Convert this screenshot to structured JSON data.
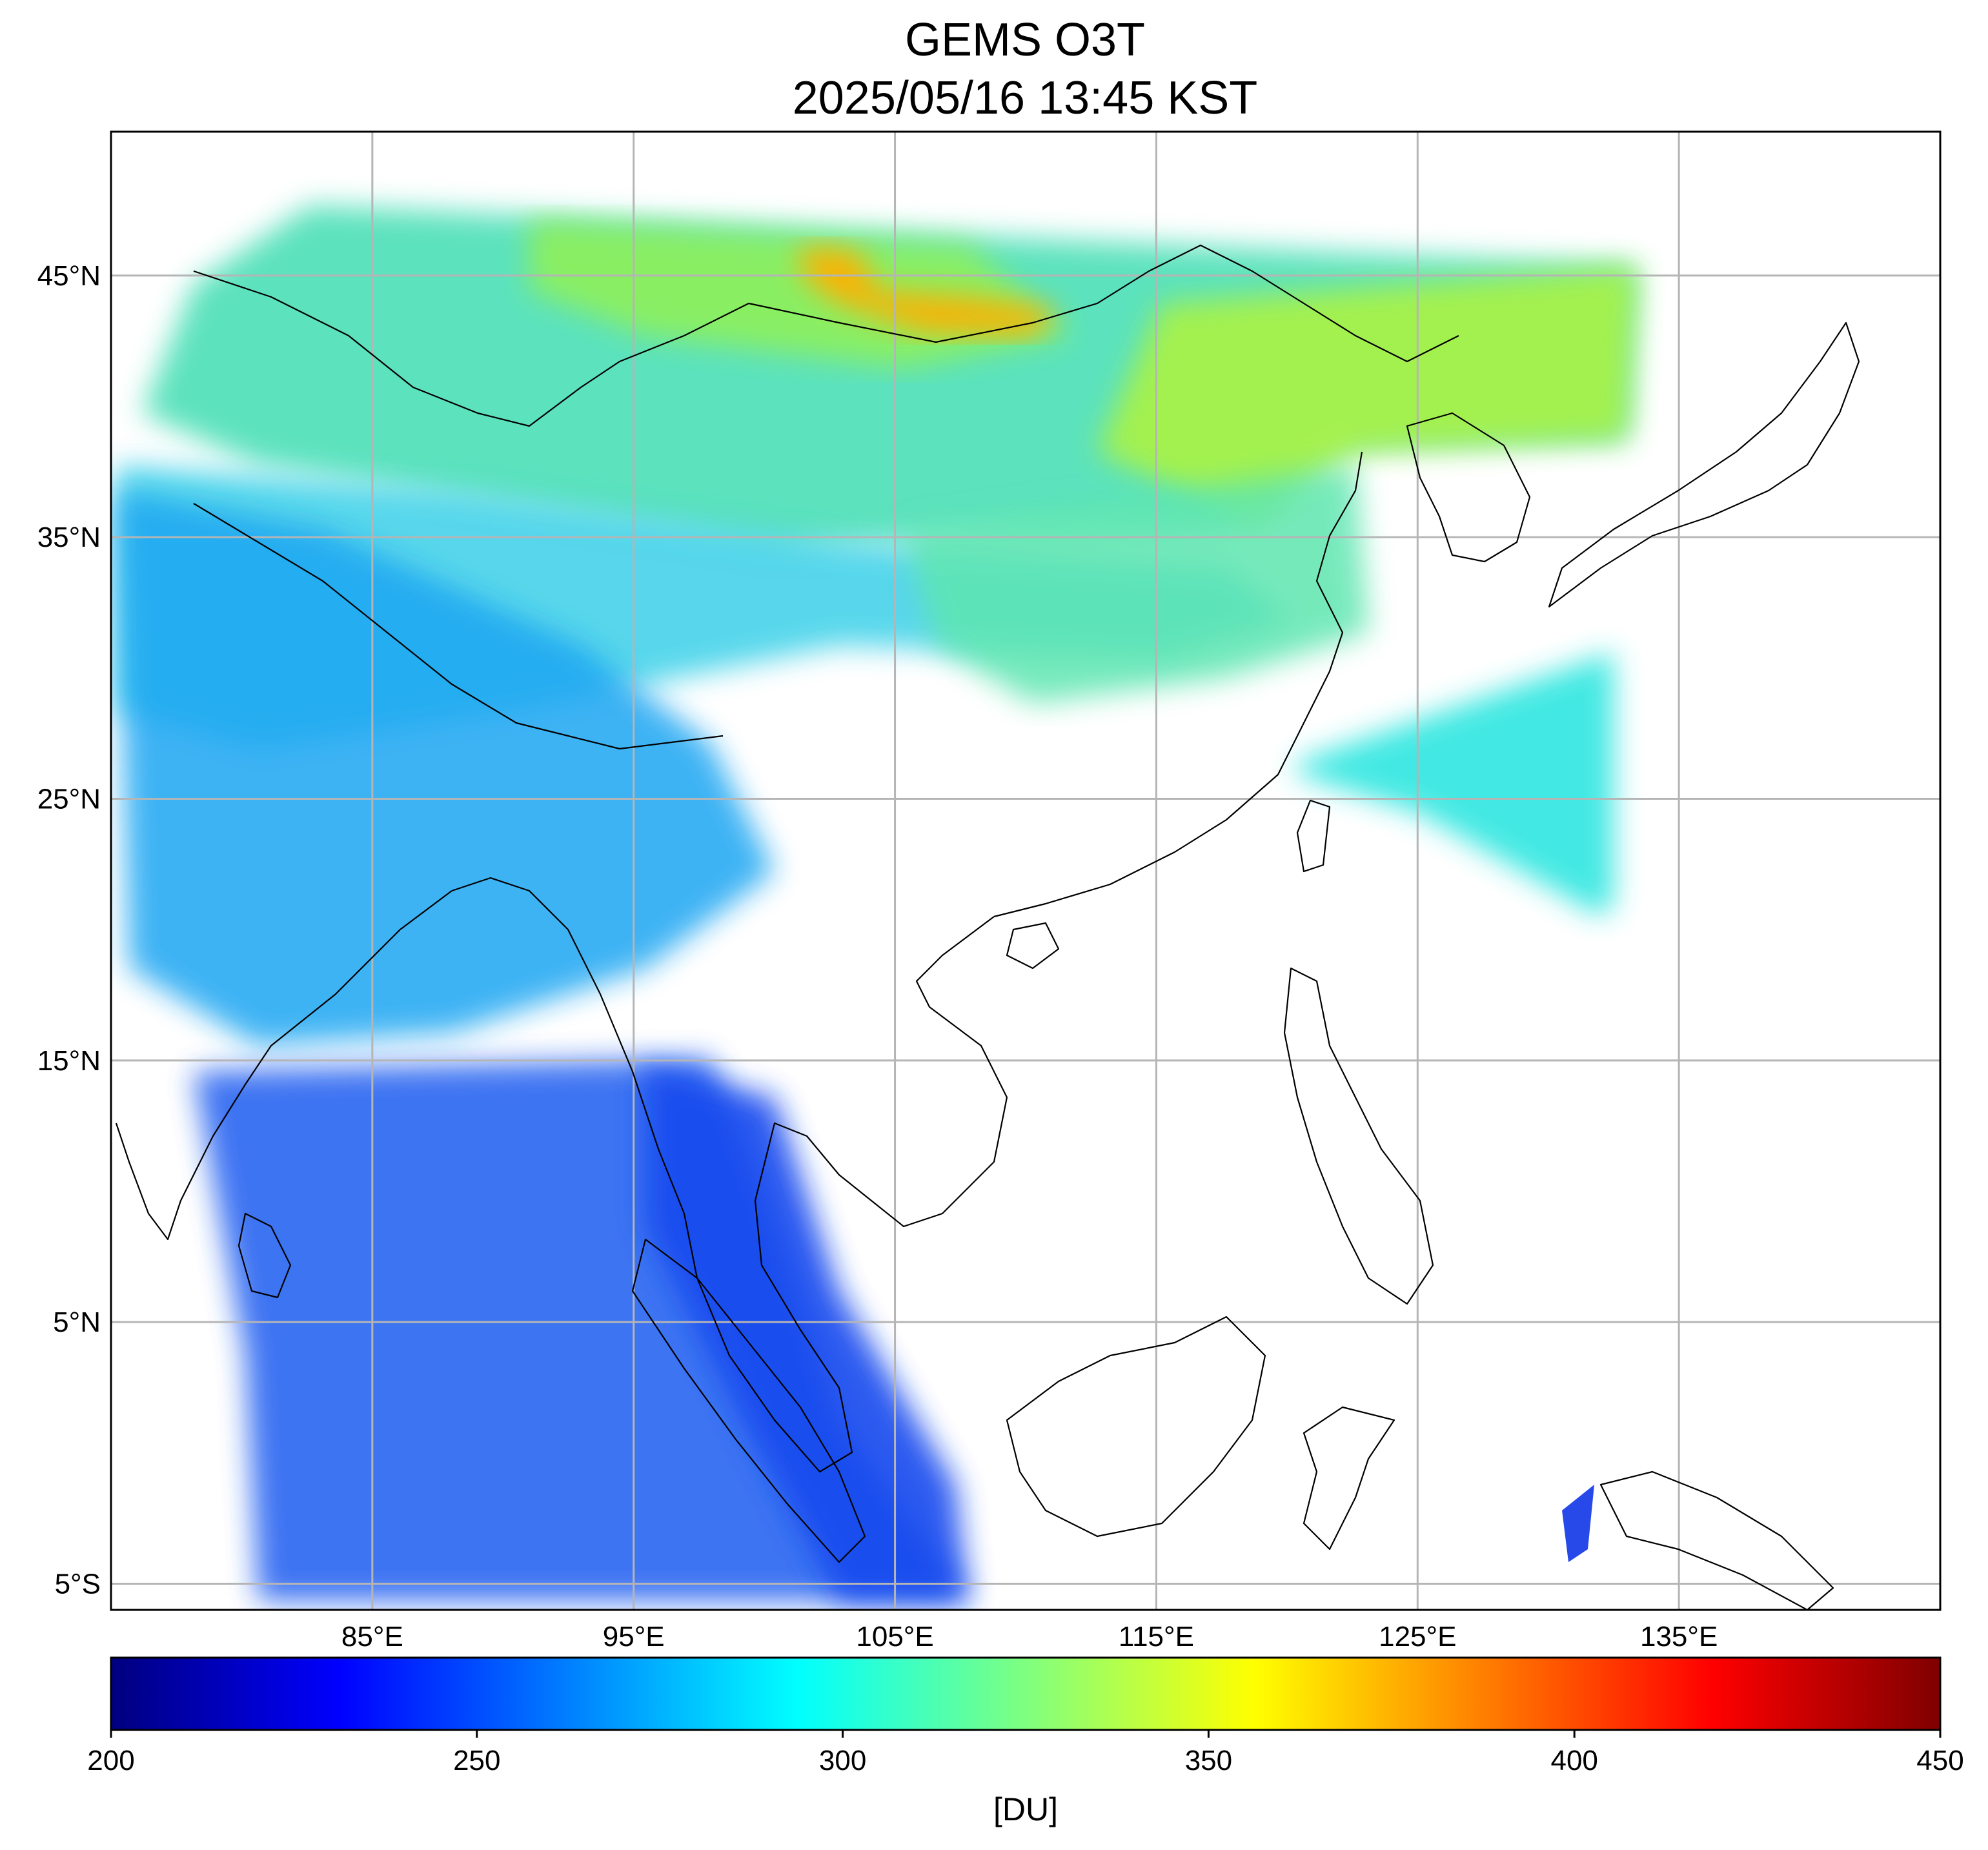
{
  "title": {
    "line1": "GEMS O3T",
    "line2": "2025/05/16 13:45 KST"
  },
  "map": {
    "lon_range": [
      75,
      145
    ],
    "lat_range": [
      -6,
      50.5
    ],
    "lat_ticks": [
      {
        "value": 45,
        "label": "45°N"
      },
      {
        "value": 35,
        "label": "35°N"
      },
      {
        "value": 25,
        "label": "25°N"
      },
      {
        "value": 15,
        "label": "15°N"
      },
      {
        "value": 5,
        "label": "5°N"
      },
      {
        "value": -5,
        "label": "5°S"
      }
    ],
    "lon_ticks": [
      {
        "value": 85,
        "label": "85°E"
      },
      {
        "value": 95,
        "label": "95°E"
      },
      {
        "value": 105,
        "label": "105°E"
      },
      {
        "value": 115,
        "label": "115°E"
      },
      {
        "value": 125,
        "label": "125°E"
      },
      {
        "value": 135,
        "label": "135°E"
      }
    ],
    "grid": true
  },
  "colorbar": {
    "min": 200,
    "max": 450,
    "ticks": [
      "200",
      "250",
      "300",
      "350",
      "400",
      "450"
    ],
    "unit_label": "[DU]",
    "colormap": "jet",
    "colors": [
      "#00007f",
      "#0000ff",
      "#007fff",
      "#00ffff",
      "#7fff7f",
      "#ffff00",
      "#ff7f00",
      "#ff0000",
      "#7f0000"
    ]
  }
}
